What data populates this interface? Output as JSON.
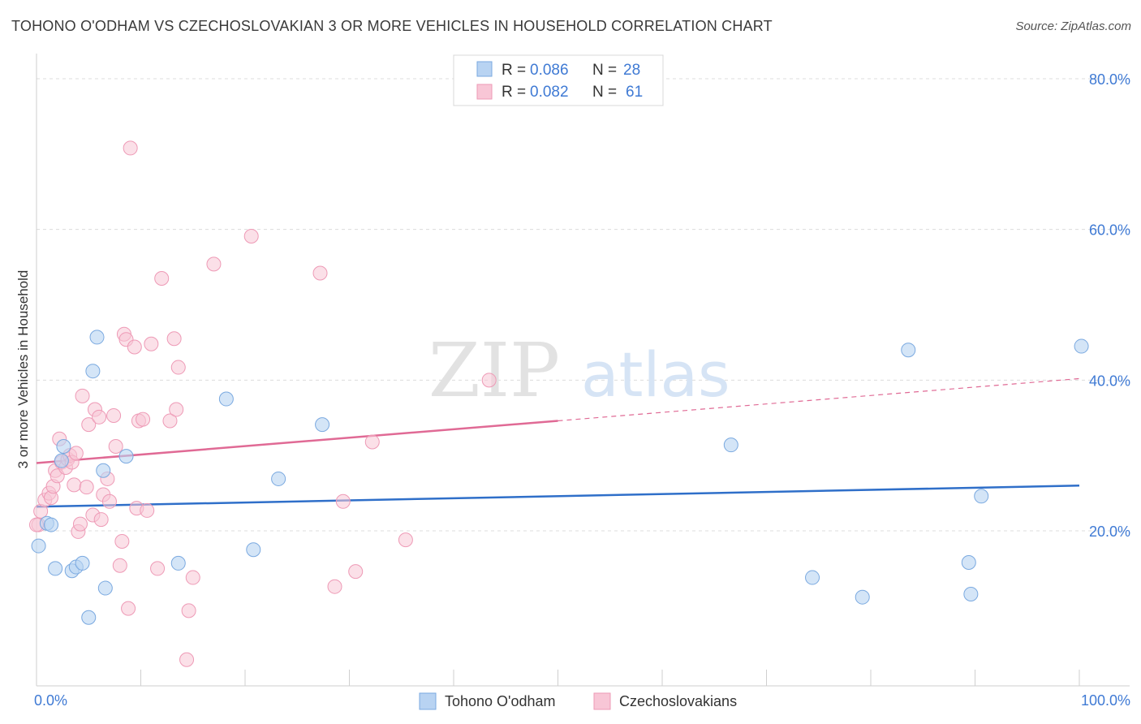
{
  "title": "TOHONO O'ODHAM VS CZECHOSLOVAKIAN 3 OR MORE VEHICLES IN HOUSEHOLD CORRELATION CHART",
  "source": "Source: ZipAtlas.com",
  "watermark": {
    "zip": "ZIP",
    "atlas": "atlas"
  },
  "colors": {
    "blue_fill": "#b8d3f2",
    "blue_stroke": "#7aa9e0",
    "blue_line": "#2f6fc9",
    "pink_fill": "#f8c6d6",
    "pink_stroke": "#ee9ab6",
    "pink_line": "#e06a95",
    "grid": "#dcdcdc",
    "tick_text": "#3f7ad4"
  },
  "legend": {
    "rows": [
      {
        "r_label": "R = ",
        "r_value": "0.086",
        "n_label": "N = ",
        "n_value": "28"
      },
      {
        "r_label": "R = ",
        "r_value": "0.082",
        "n_label": "N = ",
        "n_value": "61"
      }
    ]
  },
  "chart_data": {
    "type": "scatter",
    "title": "TOHONO O'ODHAM VS CZECHOSLOVAKIAN 3 OR MORE VEHICLES IN HOUSEHOLD CORRELATION CHART",
    "xlabel": "",
    "ylabel": "3 or more Vehicles in Household",
    "xlim": [
      0,
      100
    ],
    "ylim": [
      0,
      84
    ],
    "x_tick_labels": [
      "0.0%",
      "100.0%"
    ],
    "y_ticks": [
      20,
      40,
      60,
      80
    ],
    "y_tick_labels": [
      "20.0%",
      "40.0%",
      "60.0%",
      "80.0%"
    ],
    "grid": true,
    "legend_position": "top-center",
    "series": [
      {
        "name": "Tohono O'odham",
        "color": "#b8d3f2",
        "points": [
          [
            0.2,
            18.0
          ],
          [
            1.0,
            21.0
          ],
          [
            1.4,
            20.8
          ],
          [
            1.8,
            15.0
          ],
          [
            2.4,
            29.3
          ],
          [
            2.6,
            31.2
          ],
          [
            3.4,
            14.7
          ],
          [
            3.8,
            15.2
          ],
          [
            4.4,
            15.7
          ],
          [
            5.0,
            8.5
          ],
          [
            5.4,
            41.2
          ],
          [
            5.8,
            45.7
          ],
          [
            6.4,
            28.0
          ],
          [
            6.6,
            12.4
          ],
          [
            8.6,
            29.9
          ],
          [
            13.6,
            15.7
          ],
          [
            18.2,
            37.5
          ],
          [
            20.8,
            17.5
          ],
          [
            23.2,
            26.9
          ],
          [
            27.4,
            34.1
          ],
          [
            66.6,
            31.4
          ],
          [
            74.4,
            13.8
          ],
          [
            79.2,
            11.2
          ],
          [
            83.6,
            44.0
          ],
          [
            89.4,
            15.8
          ],
          [
            89.6,
            11.6
          ],
          [
            90.6,
            24.6
          ],
          [
            100.2,
            44.5
          ]
        ],
        "trend": {
          "x": [
            0,
            100
          ],
          "y": [
            23.2,
            26.0
          ],
          "dashed_extension": false
        }
      },
      {
        "name": "Czechoslovakians",
        "color": "#f8c6d6",
        "points": [
          [
            0.2,
            20.8
          ],
          [
            0.4,
            22.6
          ],
          [
            0.8,
            24.1
          ],
          [
            1.2,
            25.0
          ],
          [
            1.4,
            24.4
          ],
          [
            1.6,
            25.9
          ],
          [
            1.8,
            28.0
          ],
          [
            2.0,
            27.3
          ],
          [
            2.2,
            32.2
          ],
          [
            2.4,
            29.1
          ],
          [
            2.8,
            28.4
          ],
          [
            3.0,
            29.5
          ],
          [
            3.2,
            30.0
          ],
          [
            3.4,
            29.1
          ],
          [
            3.6,
            26.1
          ],
          [
            3.8,
            30.3
          ],
          [
            4.0,
            19.9
          ],
          [
            4.2,
            20.9
          ],
          [
            4.4,
            37.9
          ],
          [
            4.8,
            25.8
          ],
          [
            5.0,
            34.1
          ],
          [
            5.4,
            22.1
          ],
          [
            5.6,
            36.1
          ],
          [
            6.0,
            35.1
          ],
          [
            6.2,
            21.5
          ],
          [
            6.4,
            24.8
          ],
          [
            6.8,
            26.9
          ],
          [
            7.0,
            23.9
          ],
          [
            7.4,
            35.3
          ],
          [
            7.6,
            31.2
          ],
          [
            8.0,
            15.4
          ],
          [
            8.2,
            18.6
          ],
          [
            8.4,
            46.1
          ],
          [
            8.6,
            45.4
          ],
          [
            8.8,
            9.7
          ],
          [
            9.0,
            70.8
          ],
          [
            9.4,
            44.4
          ],
          [
            9.6,
            23.0
          ],
          [
            9.8,
            34.6
          ],
          [
            10.2,
            34.8
          ],
          [
            10.6,
            22.7
          ],
          [
            11.0,
            44.8
          ],
          [
            11.6,
            15.0
          ],
          [
            12.0,
            53.5
          ],
          [
            12.8,
            34.6
          ],
          [
            13.2,
            45.5
          ],
          [
            13.4,
            36.1
          ],
          [
            13.6,
            41.7
          ],
          [
            14.4,
            2.9
          ],
          [
            14.6,
            9.4
          ],
          [
            15.0,
            13.8
          ],
          [
            17.0,
            55.4
          ],
          [
            20.6,
            59.1
          ],
          [
            27.2,
            54.2
          ],
          [
            28.6,
            12.6
          ],
          [
            29.4,
            23.9
          ],
          [
            30.6,
            14.6
          ],
          [
            32.2,
            31.8
          ],
          [
            35.4,
            18.8
          ],
          [
            43.4,
            40.0
          ],
          [
            0.0,
            20.8
          ]
        ],
        "trend": {
          "x": [
            0,
            50,
            100
          ],
          "y": [
            29.0,
            34.6,
            40.2
          ],
          "solid_until_x": 50,
          "dashed_extension": true
        }
      }
    ]
  }
}
